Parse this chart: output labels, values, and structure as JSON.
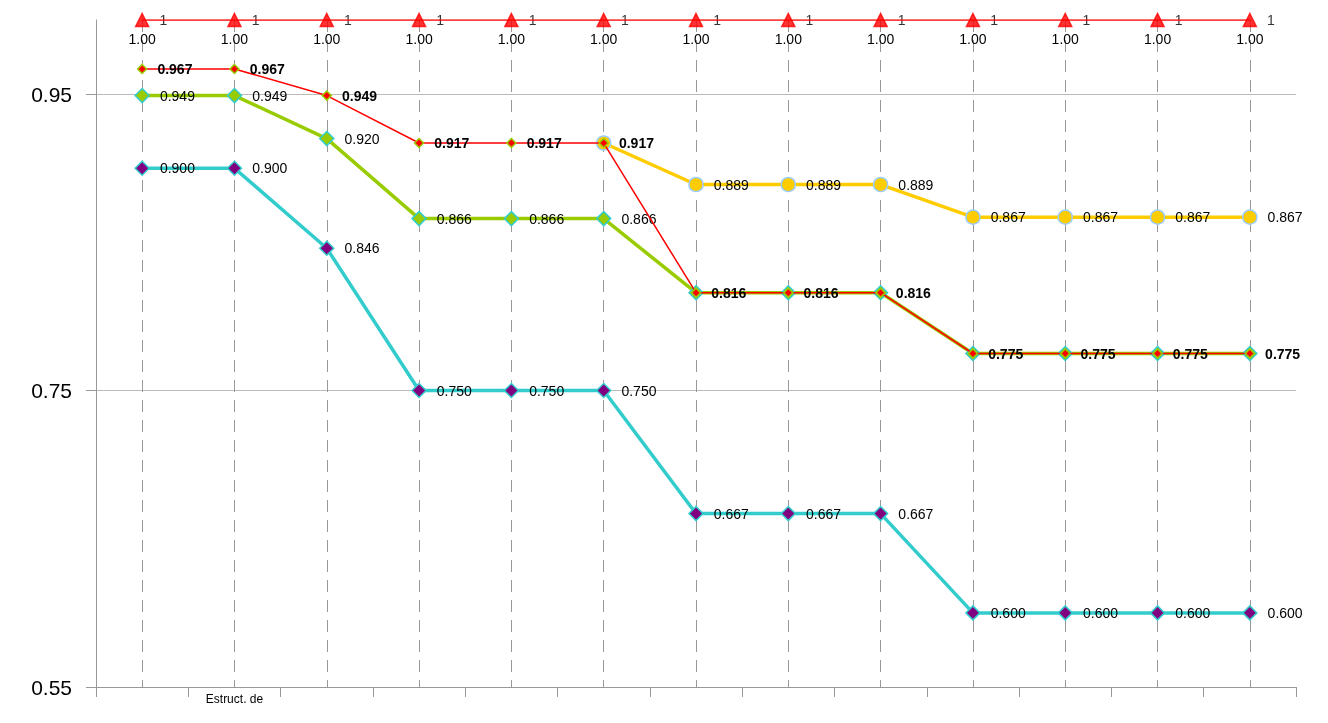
{
  "chart_data": {
    "type": "line",
    "categories": [
      null,
      "Estruct. de",
      null,
      null,
      null,
      null,
      null,
      null,
      null,
      null,
      null,
      null,
      null
    ],
    "ylim": [
      0.55,
      1.0
    ],
    "yticks": [
      0.55,
      0.75,
      0.95
    ],
    "grid": true,
    "series": [
      {
        "type": "scatter",
        "color": "#ff0000",
        "marker": "triangle",
        "values": [
          1,
          1,
          1,
          1,
          1,
          1,
          1,
          1,
          1,
          1,
          1,
          1,
          1
        ],
        "value_labels": [
          "1",
          "1",
          "1",
          "1",
          "1",
          "1",
          "1",
          "1",
          "1",
          "1",
          "1",
          "1",
          "1"
        ]
      },
      {
        "color": "#ff0000",
        "marker": "none",
        "values": [
          1,
          1,
          1,
          1,
          1,
          1,
          1,
          1,
          1,
          1,
          1,
          1,
          1
        ],
        "value_labels": [
          "1.00",
          "1.00",
          "1.00",
          "1.00",
          "1.00",
          "1.00",
          "1.00",
          "1.00",
          "1.00",
          "1.00",
          "1.00",
          "1.00",
          "1.00"
        ]
      },
      {
        "color": "#ffcc00",
        "marker": "circle",
        "values": [
          null,
          null,
          null,
          null,
          null,
          0.917,
          0.889,
          0.889,
          0.889,
          0.867,
          0.867,
          0.867,
          0.867
        ],
        "value_labels": [
          null,
          null,
          null,
          null,
          null,
          null,
          "0.889",
          "0.889",
          "0.889",
          "0.867",
          "0.867",
          "0.867",
          "0.867"
        ]
      },
      {
        "color": "#99cc00",
        "marker": "diamond",
        "values": [
          0.949,
          0.949,
          0.92,
          0.866,
          0.866,
          0.866,
          0.816,
          0.816,
          0.816,
          0.775,
          0.775,
          0.775,
          0.775
        ],
        "value_labels": [
          "0.949",
          "0.949",
          "0.920",
          "0.866",
          "0.866",
          "0.866",
          null,
          null,
          null,
          null,
          null,
          null,
          null
        ]
      },
      {
        "color": "#ff0000",
        "marker": "diamond",
        "values": [
          0.967,
          0.967,
          0.949,
          0.917,
          0.917,
          0.917,
          0.816,
          0.816,
          0.816,
          0.775,
          0.775,
          0.775,
          0.775
        ],
        "value_labels": [
          "0.967",
          "0.967",
          "0.949",
          "0.917",
          "0.917",
          "0.917",
          "0.816",
          "0.816",
          "0.816",
          "0.775",
          "0.775",
          "0.775",
          "0.775"
        ]
      },
      {
        "color": "#33cccc",
        "marker": "diamond",
        "values": [
          0.9,
          0.9,
          0.846,
          0.75,
          0.75,
          0.75,
          0.667,
          0.667,
          0.667,
          0.6,
          0.6,
          0.6,
          0.6
        ],
        "value_labels": [
          "0.900",
          "0.900",
          "0.846",
          "0.750",
          "0.750",
          "0.750",
          "0.667",
          "0.667",
          "0.667",
          "0.600",
          "0.600",
          "0.600",
          "0.600"
        ]
      }
    ]
  }
}
